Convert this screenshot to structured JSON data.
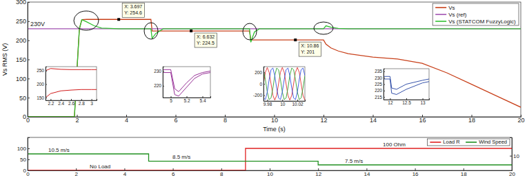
{
  "chart_data": [
    {
      "type": "line",
      "x": [
        0,
        1.9,
        2.0,
        2.1,
        2.2,
        2.4,
        2.7,
        3.0,
        3.697,
        5.0,
        5.05,
        5.2,
        5.5,
        6.632,
        9.0,
        9.05,
        9.2,
        9.4,
        10.86,
        12.0,
        12.1,
        12.3,
        12.6,
        13.0,
        14.0,
        15.0,
        16.0,
        17.0,
        18.0,
        19.0,
        20.0
      ],
      "series": [
        {
          "name": "Vs",
          "color": "#c8401a",
          "values": [
            0,
            0,
            120,
            230,
            254,
            254.6,
            254.6,
            254.6,
            254.6,
            254.6,
            224.5,
            224.5,
            224.5,
            224.5,
            224.5,
            201,
            201,
            201,
            201,
            201,
            190,
            180,
            172,
            165,
            156,
            151,
            140,
            115,
            85,
            55,
            25
          ]
        },
        {
          "name": "Vs (ref)",
          "color": "#a050b0",
          "values": [
            230,
            230,
            230,
            230,
            230,
            230,
            230,
            230,
            230,
            230,
            230,
            230,
            230,
            230,
            230,
            230,
            230,
            230,
            230,
            230,
            230,
            230,
            230,
            230,
            230,
            230,
            230,
            230,
            230,
            230,
            230
          ]
        },
        {
          "name": "Vs (STATCOM FuzzyLogic)",
          "color": "#30c030",
          "values": [
            0,
            0,
            120,
            230,
            254,
            248,
            238,
            232,
            230,
            230,
            205,
            218,
            230,
            230,
            230,
            195,
            222,
            230,
            230,
            230,
            238,
            234,
            231,
            230,
            230,
            230,
            230,
            230,
            230,
            230,
            230
          ]
        }
      ],
      "xlim": [
        0,
        20
      ],
      "xticks": [
        0,
        2,
        4,
        6,
        8,
        10,
        12,
        14,
        16,
        18,
        20
      ],
      "ylim": [
        0,
        300
      ],
      "yticks": [
        0,
        50,
        100,
        150,
        200,
        250,
        300
      ],
      "x_label": "Time (s)",
      "y_label": "Vs RMS (V)",
      "legend": "upper right",
      "annotations": [
        "230V"
      ],
      "data_tips": [
        {
          "x": 3.697,
          "y": 254.6,
          "text": [
            "X: 3.697",
            "Y: 254.6"
          ]
        },
        {
          "x": 6.632,
          "y": 224.5,
          "text": [
            "X: 6.632",
            "Y: 224.5"
          ]
        },
        {
          "x": 10.86,
          "y": 201,
          "text": [
            "X: 10.86",
            "Y: 201"
          ]
        }
      ]
    },
    {
      "type": "line",
      "x": [
        0,
        5,
        5,
        9,
        9,
        12,
        12,
        20
      ],
      "series": [
        {
          "name": "Load R",
          "color": "#e02020",
          "values": [
            0,
            0,
            0,
            0,
            100,
            100,
            100,
            100
          ]
        },
        {
          "name": "Wind Speed",
          "color": "#209020",
          "axis": "y2",
          "values": [
            10.5,
            10.5,
            8.5,
            8.5,
            8.5,
            8.5,
            7.5,
            7.5
          ]
        }
      ],
      "xlim": [
        0,
        20
      ],
      "xticks": [
        0,
        2,
        4,
        6,
        8,
        10,
        12,
        14,
        16,
        18,
        20
      ],
      "ylim": [
        0,
        150
      ],
      "yticks": [
        0,
        50,
        100
      ],
      "y2lim": [
        6,
        15
      ],
      "y2ticks": [
        10
      ],
      "legend": "upper right",
      "annotations": [
        "10.5 m/s",
        "8.5 m/s",
        "7.5 m/s",
        "No Load",
        "100 Ohm"
      ]
    },
    {
      "type": "line",
      "x": [
        2.1,
        2.2,
        2.4,
        2.6,
        2.8,
        3.0,
        3.1
      ],
      "series": [
        {
          "color": "#cc0000",
          "values": [
            250,
            258,
            255,
            254,
            254,
            254,
            254
          ]
        },
        {
          "color": "#cc0000",
          "values": [
            150,
            165,
            175,
            178,
            180,
            180,
            180
          ]
        }
      ],
      "xlim": [
        2.1,
        3.1
      ],
      "xticks": [
        2.2,
        2.4,
        2.6,
        2.8,
        3
      ],
      "ylim": [
        140,
        265
      ],
      "yticks": [
        150,
        200,
        250
      ]
    },
    {
      "type": "line",
      "x": [
        4.9,
        5.0,
        5.05,
        5.1,
        5.2,
        5.3,
        5.4,
        5.5
      ],
      "series": [
        {
          "color": "#8b1a8b",
          "values": [
            231,
            231,
            218,
            216,
            222,
            227,
            229,
            230
          ]
        },
        {
          "color": "#8b1a8b",
          "values": [
            229,
            229,
            214,
            213,
            219,
            225,
            228,
            229
          ]
        }
      ],
      "xlim": [
        4.9,
        5.5
      ],
      "xticks": [
        5,
        5.2,
        5.4
      ],
      "ylim": [
        212,
        233
      ],
      "yticks": [
        220,
        230
      ]
    },
    {
      "type": "line",
      "x": [
        9.975,
        9.9775,
        9.98,
        9.9825,
        9.985,
        9.9875,
        9.99,
        9.9925,
        9.995,
        9.9975,
        10,
        10.0025,
        10.005,
        10.0075,
        10.01,
        10.0125,
        10.015,
        10.0175,
        10.02,
        10.0225,
        10.025,
        10.0275,
        10.03
      ],
      "series": [
        {
          "color": "#e03030",
          "values": [
            0,
            201,
            285,
            201,
            0,
            -201,
            -285,
            -201,
            0,
            201,
            285,
            201,
            0,
            -201,
            -285,
            -201,
            0,
            201,
            285,
            201,
            0,
            -201,
            -285
          ]
        },
        {
          "color": "#30a030",
          "values": [
            247,
            74,
            -143,
            -275,
            -247,
            -74,
            143,
            275,
            247,
            74,
            -143,
            -275,
            -247,
            -74,
            143,
            275,
            247,
            74,
            -143,
            -275,
            -247,
            -74,
            143
          ]
        },
        {
          "color": "#3050e0",
          "values": [
            -247,
            -275,
            -143,
            74,
            247,
            275,
            143,
            -74,
            -247,
            -275,
            -143,
            74,
            247,
            275,
            143,
            -74,
            -247,
            -275,
            -143,
            74,
            247,
            275,
            143
          ]
        }
      ],
      "xlim": [
        9.975,
        10.03
      ],
      "xticks": [
        9.98,
        10,
        10.02
      ],
      "ylim": [
        -300,
        300
      ],
      "yticks": [
        -200,
        0,
        200
      ]
    },
    {
      "type": "line",
      "x": [
        11.8,
        12,
        12.05,
        12.2,
        12.5,
        13,
        13.2
      ],
      "series": [
        {
          "color": "#2040a0",
          "values": [
            231,
            231,
            222,
            221,
            225,
            228,
            229
          ]
        },
        {
          "color": "#2040a0",
          "values": [
            229,
            229,
            218,
            217,
            221,
            226,
            227
          ]
        }
      ],
      "xlim": [
        11.8,
        13.2
      ],
      "xticks": [
        12,
        12.5,
        13
      ],
      "ylim": [
        213,
        237
      ],
      "yticks": [
        215,
        220,
        225,
        230,
        235
      ]
    }
  ]
}
